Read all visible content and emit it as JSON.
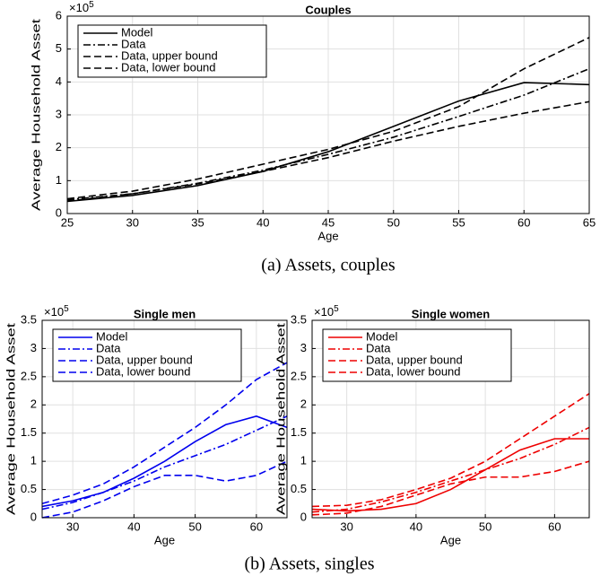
{
  "chart_data": [
    {
      "type": "line",
      "title": "Couples",
      "xlabel": "Age",
      "ylabel": "Average Household Asset",
      "y_multiplier": "×10",
      "y_exponent": "5",
      "x": [
        25,
        30,
        35,
        40,
        45,
        50,
        55,
        60,
        65
      ],
      "xlim": [
        25,
        65
      ],
      "xticks": [
        25,
        30,
        35,
        40,
        45,
        50,
        55,
        60,
        65
      ],
      "ylim": [
        0,
        6
      ],
      "yticks": [
        0,
        1,
        2,
        3,
        4,
        5,
        6
      ],
      "grid": true,
      "legend": "upper left",
      "series": [
        {
          "name": "Model",
          "color": "#000000",
          "dash": "solid",
          "values": [
            0.37,
            0.55,
            0.85,
            1.28,
            1.88,
            2.65,
            3.42,
            3.98,
            3.92
          ]
        },
        {
          "name": "Data",
          "color": "#000000",
          "dash": "dashdot",
          "values": [
            0.42,
            0.6,
            0.92,
            1.32,
            1.8,
            2.32,
            2.95,
            3.6,
            4.4
          ]
        },
        {
          "name": "Data, upper bound",
          "color": "#000000",
          "dash": "dashed",
          "values": [
            0.45,
            0.68,
            1.05,
            1.5,
            1.95,
            2.5,
            3.25,
            4.4,
            5.35
          ]
        },
        {
          "name": "Data, lower bound",
          "color": "#000000",
          "dash": "dashed",
          "values": [
            0.38,
            0.6,
            0.9,
            1.28,
            1.7,
            2.2,
            2.65,
            3.05,
            3.4
          ]
        }
      ]
    },
    {
      "type": "line",
      "title": "Single men",
      "xlabel": "Age",
      "ylabel": "Average Household Asset",
      "y_multiplier": "×10",
      "y_exponent": "5",
      "x": [
        25,
        30,
        35,
        40,
        45,
        50,
        55,
        60,
        65
      ],
      "xlim": [
        25,
        65
      ],
      "xticks": [
        30,
        40,
        50,
        60
      ],
      "ylim": [
        0,
        3.5
      ],
      "yticks": [
        0,
        0.5,
        1,
        1.5,
        2,
        2.5,
        3,
        3.5
      ],
      "grid": true,
      "legend": "upper left",
      "series": [
        {
          "name": "Model",
          "color": "#0000ee",
          "dash": "solid",
          "values": [
            0.2,
            0.3,
            0.45,
            0.7,
            1.0,
            1.35,
            1.65,
            1.8,
            1.6
          ]
        },
        {
          "name": "Data",
          "color": "#0000ee",
          "dash": "dashdot",
          "values": [
            0.15,
            0.27,
            0.45,
            0.65,
            0.9,
            1.1,
            1.3,
            1.55,
            1.8
          ]
        },
        {
          "name": "Data, upper bound",
          "color": "#0000ee",
          "dash": "dashed",
          "values": [
            0.25,
            0.4,
            0.6,
            0.9,
            1.25,
            1.6,
            2.0,
            2.45,
            2.75
          ]
        },
        {
          "name": "Data, lower bound",
          "color": "#0000ee",
          "dash": "dashed",
          "values": [
            0.0,
            0.1,
            0.3,
            0.55,
            0.75,
            0.75,
            0.65,
            0.75,
            1.0
          ]
        }
      ]
    },
    {
      "type": "line",
      "title": "Single women",
      "xlabel": "Age",
      "ylabel": "Average Household Asset",
      "y_multiplier": "×10",
      "y_exponent": "5",
      "x": [
        25,
        30,
        35,
        40,
        45,
        50,
        55,
        60,
        65
      ],
      "xlim": [
        25,
        65
      ],
      "xticks": [
        30,
        40,
        50,
        60
      ],
      "ylim": [
        0,
        3.5
      ],
      "yticks": [
        0,
        0.5,
        1,
        1.5,
        2,
        2.5,
        3,
        3.5
      ],
      "grid": true,
      "legend": "upper left",
      "series": [
        {
          "name": "Model",
          "color": "#ee0000",
          "dash": "solid",
          "values": [
            0.15,
            0.12,
            0.15,
            0.25,
            0.5,
            0.85,
            1.2,
            1.4,
            1.4
          ]
        },
        {
          "name": "Data",
          "color": "#ee0000",
          "dash": "dashdot",
          "values": [
            0.1,
            0.15,
            0.28,
            0.45,
            0.65,
            0.85,
            1.05,
            1.3,
            1.6
          ]
        },
        {
          "name": "Data, upper bound",
          "color": "#ee0000",
          "dash": "dashed",
          "values": [
            0.2,
            0.22,
            0.32,
            0.5,
            0.7,
            1.0,
            1.4,
            1.8,
            2.2
          ]
        },
        {
          "name": "Data, lower bound",
          "color": "#ee0000",
          "dash": "dashed",
          "values": [
            0.05,
            0.08,
            0.2,
            0.4,
            0.6,
            0.72,
            0.72,
            0.82,
            1.0
          ]
        }
      ]
    }
  ],
  "captions": [
    "(a) Assets, couples",
    "(b) Assets, singles"
  ]
}
